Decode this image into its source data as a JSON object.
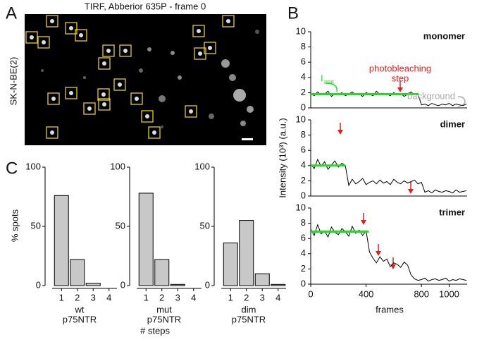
{
  "figure": {
    "panel_labels": [
      "A",
      "B",
      "C"
    ],
    "image_title": "TIRF, Abberior 635P - frame 0",
    "image_side_label": "SK-N-BE(2)",
    "ylabel_B": "Intensity (10³) (a.u.)",
    "xlabel_B": "frames",
    "ylabel_C": "% spots",
    "xlabel_C": "# steps"
  },
  "chart_data": [
    {
      "type": "line",
      "title": "monomer",
      "annotations": [
        "photobleaching",
        "step",
        "background"
      ],
      "level_label": {
        "main": "I",
        "sub": "PRE"
      },
      "x": [
        0,
        25,
        50,
        75,
        100,
        125,
        150,
        175,
        200,
        225,
        250,
        275,
        300,
        325,
        350,
        375,
        400,
        425,
        450,
        475,
        500,
        525,
        550,
        575,
        600,
        625,
        650,
        675,
        700,
        725,
        750,
        775,
        800,
        825,
        850,
        875,
        900,
        925,
        950,
        975,
        1000,
        1025,
        1050,
        1075,
        1100,
        1125
      ],
      "series": [
        {
          "color": "#000000",
          "values": [
            1.9,
            1.6,
            2.1,
            1.7,
            1.8,
            2.2,
            1.5,
            1.9,
            1.7,
            2.0,
            1.6,
            1.8,
            2.1,
            1.7,
            1.9,
            1.5,
            2.0,
            1.8,
            1.6,
            2.2,
            1.7,
            1.9,
            1.8,
            1.6,
            2.0,
            1.7,
            1.9,
            1.5,
            1.8,
            2.1,
            1.7,
            1.8,
            0.4,
            0.5,
            0.3,
            0.6,
            0.4,
            0.3,
            0.5,
            0.4,
            0.6,
            0.3,
            0.5,
            0.4,
            0.3,
            0.5
          ]
        },
        {
          "color": "#22dd22",
          "x": [
            0,
            780
          ],
          "values": [
            1.8,
            1.8
          ]
        }
      ],
      "xlim": [
        0,
        1130
      ],
      "ylim": [
        0,
        10
      ],
      "yticks": [
        0,
        2,
        4,
        6,
        8,
        10
      ]
    },
    {
      "type": "line",
      "title": "dimer",
      "x": [
        0,
        25,
        50,
        75,
        100,
        125,
        150,
        175,
        200,
        225,
        250,
        275,
        300,
        325,
        350,
        375,
        400,
        425,
        450,
        475,
        500,
        525,
        550,
        575,
        600,
        625,
        650,
        675,
        700,
        725,
        750,
        775,
        800,
        825,
        850,
        875,
        900,
        925,
        950,
        975,
        1000,
        1025,
        1050,
        1075,
        1100,
        1125
      ],
      "series": [
        {
          "color": "#000000",
          "values": [
            4.2,
            3.6,
            4.8,
            3.9,
            4.5,
            3.5,
            4.1,
            4.6,
            3.8,
            4.3,
            4.0,
            1.4,
            2.2,
            1.6,
            1.9,
            2.3,
            1.5,
            1.8,
            2.0,
            1.6,
            2.1,
            1.7,
            1.9,
            1.5,
            2.2,
            1.8,
            1.6,
            2.0,
            1.7,
            1.9,
            2.1,
            1.6,
            1.8,
            0.5,
            0.7,
            0.4,
            0.8,
            0.6,
            0.5,
            0.7,
            0.6,
            0.4,
            0.8,
            0.5,
            0.6,
            0.7
          ]
        },
        {
          "color": "#22dd22",
          "x": [
            0,
            250
          ],
          "values": [
            4.0,
            4.0
          ]
        }
      ],
      "xlim": [
        0,
        1130
      ],
      "ylim": [
        0,
        10
      ],
      "yticks": [
        0,
        2,
        4,
        6,
        8,
        10
      ]
    },
    {
      "type": "line",
      "title": "trimer",
      "x": [
        0,
        25,
        50,
        75,
        100,
        125,
        150,
        175,
        200,
        225,
        250,
        275,
        300,
        325,
        350,
        375,
        400,
        425,
        450,
        475,
        500,
        525,
        550,
        575,
        600,
        625,
        650,
        675,
        700,
        725,
        750,
        775,
        800,
        825,
        850,
        875,
        900,
        925,
        950,
        975,
        1000,
        1025,
        1050,
        1075,
        1100,
        1125
      ],
      "series": [
        {
          "color": "#000000",
          "values": [
            7.2,
            6.4,
            7.8,
            6.6,
            7.0,
            6.2,
            7.5,
            6.8,
            6.5,
            7.3,
            6.9,
            6.3,
            7.6,
            6.7,
            7.1,
            6.4,
            7.0,
            4.2,
            3.4,
            2.8,
            3.6,
            3.0,
            3.3,
            2.3,
            2.8,
            2.6,
            2.2,
            2.9,
            2.5,
            1.2,
            0.7,
            0.5,
            0.6,
            0.8,
            0.4,
            0.6,
            0.7,
            0.5,
            0.6,
            0.8,
            0.4,
            0.6,
            0.5,
            0.7,
            0.6,
            0.5
          ]
        },
        {
          "color": "#22dd22",
          "x": [
            0,
            420
          ],
          "values": [
            6.9,
            6.9
          ]
        }
      ],
      "xlim": [
        0,
        1130
      ],
      "xticks": [
        0,
        400,
        800,
        1000
      ],
      "ylim": [
        0,
        10
      ],
      "yticks": [
        0,
        2,
        4,
        6,
        8,
        10
      ]
    },
    {
      "type": "bar",
      "xlabel_lines": [
        "wt",
        "p75NTR"
      ],
      "categories": [
        "1",
        "2",
        "3",
        "4"
      ],
      "values": [
        76,
        22,
        2,
        0
      ],
      "color": "#c8c8c8",
      "ylim": [
        0,
        100
      ],
      "yticks": [
        0,
        50,
        100
      ]
    },
    {
      "type": "bar",
      "xlabel_lines": [
        "mut",
        "p75NTR"
      ],
      "categories": [
        "1",
        "2",
        "3",
        "4"
      ],
      "values": [
        78,
        22,
        1,
        0
      ],
      "color": "#c8c8c8",
      "ylim": [
        0,
        100
      ],
      "yticks": [
        0,
        50,
        100
      ]
    },
    {
      "type": "bar",
      "xlabel_lines": [
        "dim",
        "p75NTR"
      ],
      "categories": [
        "1",
        "2",
        "3",
        "4"
      ],
      "values": [
        36,
        55,
        10,
        1
      ],
      "color": "#c8c8c8",
      "ylim": [
        0,
        100
      ],
      "yticks": [
        0,
        50,
        100
      ]
    }
  ]
}
